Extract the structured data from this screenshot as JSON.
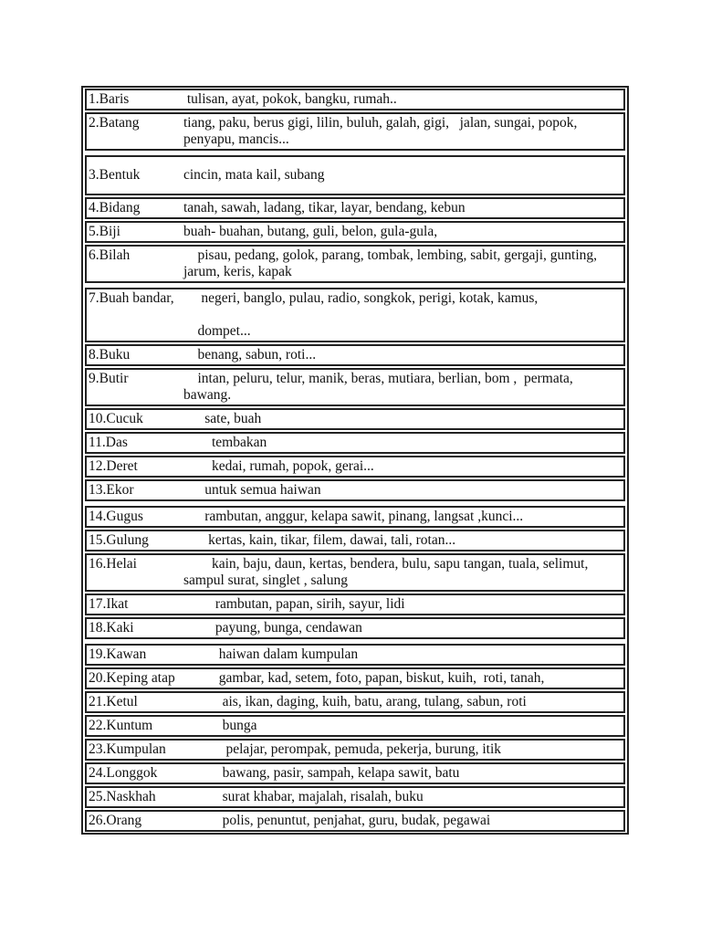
{
  "page": {
    "background_color": "#ffffff",
    "border_color": "#222222",
    "text_color": "#111111"
  },
  "table": {
    "description": "Malay penjodoh bilangan (classifier) list with example nouns",
    "rows": [
      {
        "term": "1.Baris",
        "examples": [
          " tulisan, ayat, pokok, bangku, rumah.."
        ]
      },
      {
        "term": "2.Batang",
        "examples": [
          "tiang, paku, berus gigi, lilin, buluh, galah, gigi,   jalan, sungai, popok, penyapu, mancis..."
        ]
      },
      {
        "term": "3.Bentuk",
        "examples": [
          "cincin, mata kail, subang"
        ]
      },
      {
        "term": "4.Bidang",
        "examples": [
          "tanah, sawah, ladang, tikar, layar, bendang, kebun"
        ]
      },
      {
        "term": "5.Biji",
        "examples": [
          "buah- buahan, butang, guli, belon, gula-gula,"
        ]
      },
      {
        "term": "6.Bilah",
        "examples": [
          "    pisau, pedang, golok, parang, tombak, lembing, sabit, gergaji, gunting, jarum, keris, kapak"
        ]
      },
      {
        "term": "7.Buah bandar,",
        "examples": [
          "     negeri, banglo, pulau, radio, songkok, perigi, kotak, kamus,",
          "",
          "    dompet..."
        ]
      },
      {
        "term": "8.Buku",
        "examples": [
          "    benang, sabun, roti..."
        ]
      },
      {
        "term": "9.Butir",
        "examples": [
          "    intan, peluru, telur, manik, beras, mutiara, berlian, bom ,  permata, bawang."
        ]
      },
      {
        "term": "10.Cucuk",
        "examples": [
          "      sate, buah"
        ]
      },
      {
        "term": "11.Das",
        "examples": [
          "        tembakan"
        ]
      },
      {
        "term": "12.Deret",
        "examples": [
          "        kedai, rumah, popok, gerai..."
        ]
      },
      {
        "term": "13.Ekor",
        "examples": [
          "      untuk semua haiwan"
        ]
      },
      {
        "term": "14.Gugus",
        "examples": [
          "      rambutan, anggur, kelapa sawit, pinang, langsat ,kunci..."
        ]
      },
      {
        "term": "15.Gulung",
        "examples": [
          "       kertas, kain, tikar, filem, dawai, tali, rotan..."
        ]
      },
      {
        "term": "16.Helai",
        "examples": [
          "        kain, baju, daun, kertas, bendera, bulu, sapu tangan, tuala, selimut, sampul surat, singlet , salung"
        ]
      },
      {
        "term": "17.Ikat",
        "examples": [
          "         rambutan, papan, sirih, sayur, lidi"
        ]
      },
      {
        "term": "18.Kaki",
        "examples": [
          "         payung, bunga, cendawan"
        ]
      },
      {
        "term": "19.Kawan",
        "examples": [
          "          haiwan dalam kumpulan"
        ]
      },
      {
        "term": "20.Keping atap",
        "examples": [
          "          gambar, kad, setem, foto, papan, biskut, kuih,  roti, tanah,"
        ]
      },
      {
        "term": "21.Ketul",
        "examples": [
          "           ais, ikan, daging, kuih, batu, arang, tulang, sabun, roti"
        ]
      },
      {
        "term": "22.Kuntum",
        "examples": [
          "           bunga"
        ]
      },
      {
        "term": "23.Kumpulan",
        "examples": [
          "            pelajar, perompak, pemuda, pekerja, burung, itik"
        ]
      },
      {
        "term": "24.Longgok",
        "examples": [
          "           bawang, pasir, sampah, kelapa sawit, batu"
        ]
      },
      {
        "term": "25.Naskhah",
        "examples": [
          "           surat khabar, majalah, risalah, buku"
        ]
      },
      {
        "term": "26.Orang",
        "examples": [
          "           polis, penuntut, penjahat, guru, budak, pegawai"
        ]
      }
    ]
  }
}
